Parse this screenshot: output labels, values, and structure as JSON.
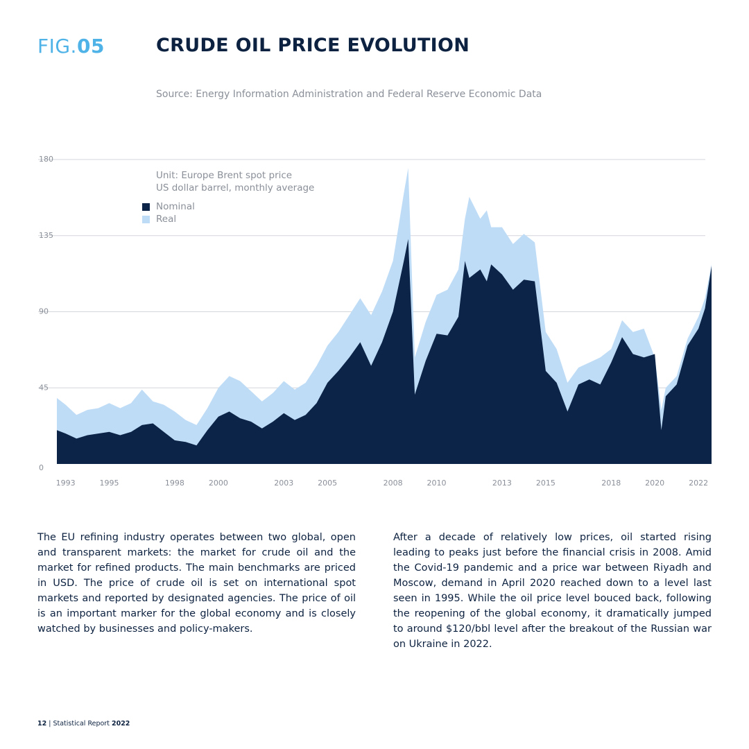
{
  "header": {
    "fig_prefix": "FIG.",
    "fig_number": "05",
    "title": "CRUDE OIL PRICE EVOLUTION",
    "source": "Source: Energy Information Administration and Federal Reserve Economic Data"
  },
  "chart_note": {
    "line1": "Unit: Europe Brent spot price",
    "line2": "US dollar barrel, monthly average"
  },
  "colors": {
    "nominal": "#0b2447",
    "real": "#bfdcf7",
    "grid": "#d3d6db",
    "tick_text": "#8a8f98"
  },
  "chart_data": {
    "type": "area",
    "title": "CRUDE OIL PRICE EVOLUTION",
    "xlabel": "",
    "ylabel": "",
    "xlim": [
      1992.6,
      2022.6
    ],
    "ylim": [
      0,
      180
    ],
    "y_ticks": [
      0,
      45,
      90,
      135,
      180
    ],
    "x_ticks": [
      1993,
      1995,
      1998,
      2000,
      2003,
      2005,
      2008,
      2010,
      2013,
      2015,
      2018,
      2020,
      2022
    ],
    "x_tick_labels": [
      "1993",
      "1995",
      "1998",
      "2000",
      "2003",
      "2005",
      "2008",
      "2010",
      "2013",
      "2015",
      "2018",
      "2020",
      "2022"
    ],
    "grid": true,
    "legend_position": "top-left",
    "x": [
      1992.6,
      1993.0,
      1993.5,
      1994.0,
      1994.5,
      1995.0,
      1995.5,
      1996.0,
      1996.5,
      1997.0,
      1997.5,
      1998.0,
      1998.5,
      1999.0,
      1999.5,
      2000.0,
      2000.5,
      2001.0,
      2001.5,
      2002.0,
      2002.5,
      2003.0,
      2003.5,
      2004.0,
      2004.5,
      2005.0,
      2005.5,
      2006.0,
      2006.5,
      2007.0,
      2007.5,
      2008.0,
      2008.5,
      2008.7,
      2009.0,
      2009.5,
      2010.0,
      2010.5,
      2011.0,
      2011.3,
      2011.5,
      2012.0,
      2012.3,
      2012.5,
      2013.0,
      2013.5,
      2014.0,
      2014.5,
      2015.0,
      2015.5,
      2016.0,
      2016.5,
      2017.0,
      2017.5,
      2018.0,
      2018.5,
      2019.0,
      2019.5,
      2020.0,
      2020.3,
      2020.5,
      2021.0,
      2021.5,
      2022.0,
      2022.3,
      2022.6
    ],
    "series": [
      {
        "name": "Real",
        "values": [
          39,
          35,
          29,
          32,
          33,
          36,
          33,
          36,
          44,
          37,
          35,
          31,
          26,
          23,
          33,
          45,
          52,
          49,
          43,
          37,
          42,
          49,
          44,
          48,
          58,
          70,
          78,
          88,
          98,
          88,
          102,
          120,
          160,
          175,
          63,
          84,
          100,
          103,
          115,
          145,
          158,
          145,
          150,
          140,
          140,
          130,
          136,
          131,
          78,
          68,
          48,
          57,
          60,
          63,
          68,
          85,
          78,
          80,
          63,
          32,
          45,
          52,
          74,
          87,
          98,
          118
        ]
      },
      {
        "name": "Nominal",
        "values": [
          20,
          18,
          15,
          17,
          18,
          19,
          17,
          19,
          23,
          24,
          19,
          14,
          13,
          11,
          20,
          28,
          31,
          27,
          25,
          21,
          25,
          30,
          26,
          29,
          36,
          48,
          55,
          63,
          72,
          58,
          72,
          90,
          120,
          133,
          41,
          61,
          77,
          76,
          87,
          120,
          110,
          115,
          108,
          118,
          112,
          103,
          109,
          108,
          55,
          48,
          31,
          47,
          50,
          47,
          60,
          75,
          65,
          63,
          65,
          20,
          40,
          47,
          70,
          80,
          92,
          117
        ]
      }
    ]
  },
  "body": {
    "left_paragraph": "The EU refining industry operates between two global, open and transparent markets: the market for crude oil and the market for refined products. The main benchmarks are priced in USD. The price of crude oil is set on international spot markets and reported by designated agencies. The price of oil is an important marker for the global economy and is closely watched by businesses and policy-makers.",
    "right_paragraph": "After a decade of relatively low prices, oil started rising leading to peaks just before the financial crisis in 2008. Amid the Covid-19 pandemic and a price war between Riyadh and Moscow, demand in April 2020 reached down to a level last seen in 1995. While the oil price level bouced back, following the reopening of the global economy, it dramatically jumped to around $120/bbl level after the breakout of the Russian war on Ukraine in 2022."
  },
  "footer": {
    "page_number": "12",
    "separator": " | ",
    "report_name": "Statistical Report ",
    "report_year": "2022"
  }
}
